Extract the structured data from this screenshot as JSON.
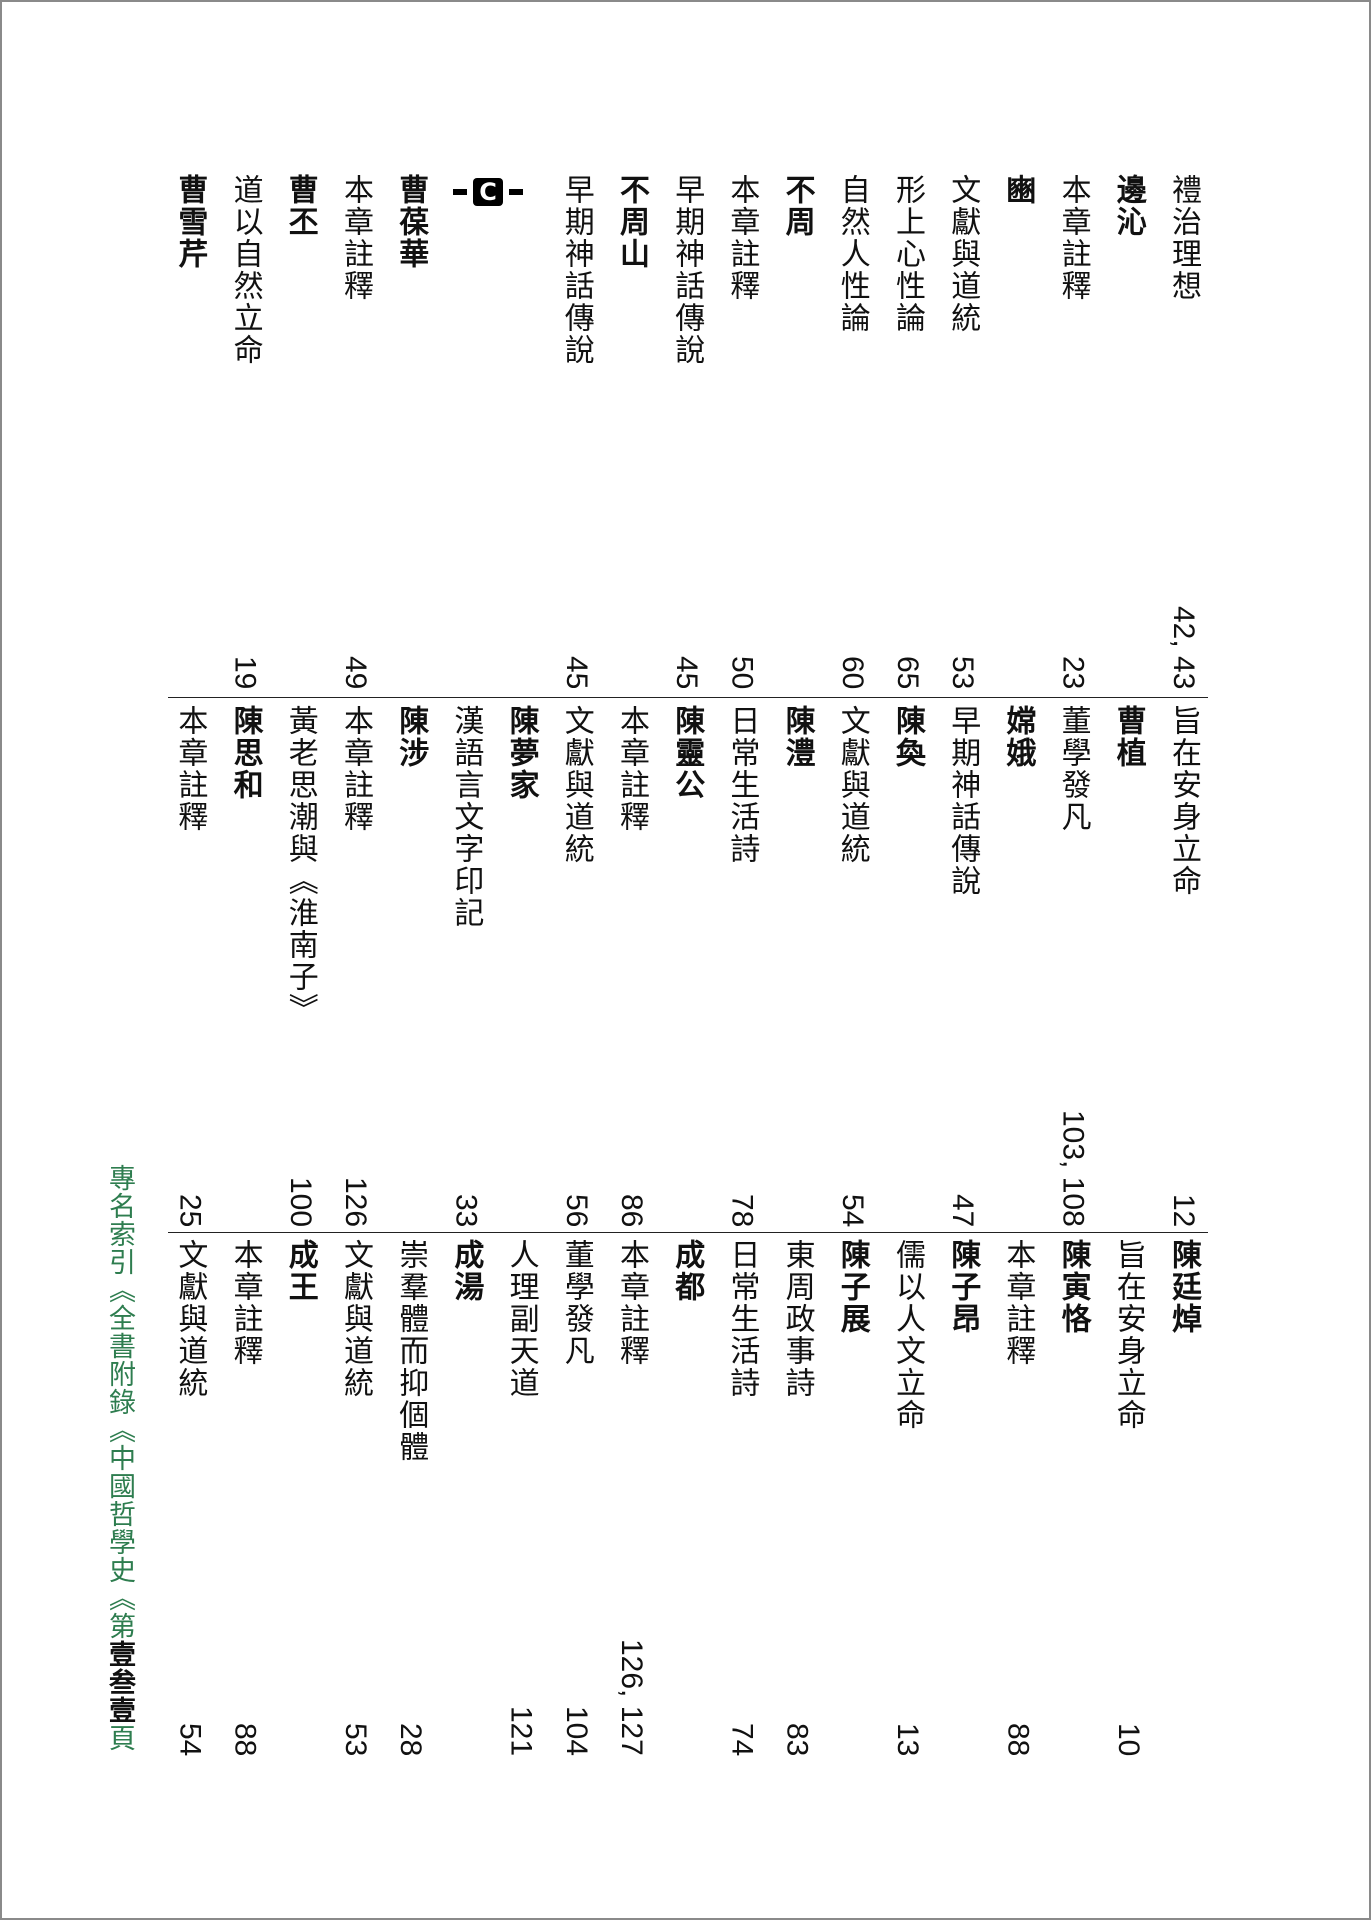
{
  "tiers": [
    {
      "items": [
        {
          "text": "禮治理想",
          "bold": false,
          "page": "42, 43"
        },
        {
          "text": "邊沁",
          "bold": true
        },
        {
          "text": "本章註釋",
          "bold": false,
          "page": "23"
        },
        {
          "text": "豳",
          "bold": true
        },
        {
          "text": "文獻與道統",
          "bold": false,
          "page": "53"
        },
        {
          "text": "形上心性論",
          "bold": false,
          "page": "65"
        },
        {
          "text": "自然人性論",
          "bold": false,
          "page": "60"
        },
        {
          "text": "不周",
          "bold": true
        },
        {
          "text": "本章註釋",
          "bold": false,
          "page": "50"
        },
        {
          "text": "早期神話傳說",
          "bold": false,
          "page": "45"
        },
        {
          "text": "不周山",
          "bold": true
        },
        {
          "text": "早期神話傳說",
          "bold": false,
          "page": "45"
        },
        {
          "marker": "C"
        },
        {
          "text": "曹葆華",
          "bold": true
        },
        {
          "text": "本章註釋",
          "bold": false,
          "page": "49"
        },
        {
          "text": "曹丕",
          "bold": true
        },
        {
          "text": "道以自然立命",
          "bold": false,
          "page": "19"
        },
        {
          "text": "曹雪芹",
          "bold": true
        }
      ]
    },
    {
      "items": [
        {
          "text": "旨在安身立命",
          "bold": false,
          "page": "12"
        },
        {
          "text": "曹植",
          "bold": true
        },
        {
          "text": "董學發凡",
          "bold": false,
          "page": "103, 108"
        },
        {
          "text": "嫦娥",
          "bold": true
        },
        {
          "text": "早期神話傳說",
          "bold": false,
          "page": "47"
        },
        {
          "text": "陳奐",
          "bold": true
        },
        {
          "text": "文獻與道統",
          "bold": false,
          "page": "54"
        },
        {
          "text": "陳澧",
          "bold": true
        },
        {
          "text": "日常生活詩",
          "bold": false,
          "page": "78"
        },
        {
          "text": "陳靈公",
          "bold": true
        },
        {
          "text": "本章註釋",
          "bold": false,
          "page": "86"
        },
        {
          "text": "文獻與道統",
          "bold": false,
          "page": "56"
        },
        {
          "text": "陳夢家",
          "bold": true
        },
        {
          "text": "漢語言文字印記",
          "bold": false,
          "page": "33"
        },
        {
          "text": "陳涉",
          "bold": true
        },
        {
          "text": "本章註釋",
          "bold": false,
          "page": "126"
        },
        {
          "text": "黃老思潮與《淮南子》",
          "bold": false,
          "page": "100"
        },
        {
          "text": "陳思和",
          "bold": true
        },
        {
          "text": "本章註釋",
          "bold": false,
          "page": "25"
        }
      ]
    },
    {
      "items": [
        {
          "text": "陳廷焯",
          "bold": true
        },
        {
          "text": "旨在安身立命",
          "bold": false,
          "page": "10"
        },
        {
          "text": "陳寅恪",
          "bold": true
        },
        {
          "text": "本章註釋",
          "bold": false,
          "page": "88"
        },
        {
          "text": "陳子昂",
          "bold": true
        },
        {
          "text": "儒以人文立命",
          "bold": false,
          "page": "13"
        },
        {
          "text": "陳子展",
          "bold": true
        },
        {
          "text": "東周政事詩",
          "bold": false,
          "page": "83"
        },
        {
          "text": "日常生活詩",
          "bold": false,
          "page": "74"
        },
        {
          "text": "成都",
          "bold": true
        },
        {
          "text": "本章註釋",
          "bold": false,
          "page": "126, 127"
        },
        {
          "text": "董學發凡",
          "bold": false,
          "page": "104"
        },
        {
          "text": "人理副天道",
          "bold": false,
          "page": "121"
        },
        {
          "text": "成湯",
          "bold": true
        },
        {
          "text": "崇羣體而抑個體",
          "bold": false,
          "page": "28"
        },
        {
          "text": "文獻與道統",
          "bold": false,
          "page": "53"
        },
        {
          "text": "成王",
          "bold": true
        },
        {
          "text": "本章註釋",
          "bold": false,
          "page": "88"
        },
        {
          "text": "文獻與道統",
          "bold": false,
          "page": "54"
        }
      ]
    }
  ],
  "footer": {
    "label": "專名索引《全書附錄《中國哲學史《第",
    "page_number": "壹叁壹",
    "suffix": "頁",
    "color": "#2e7d4f"
  }
}
